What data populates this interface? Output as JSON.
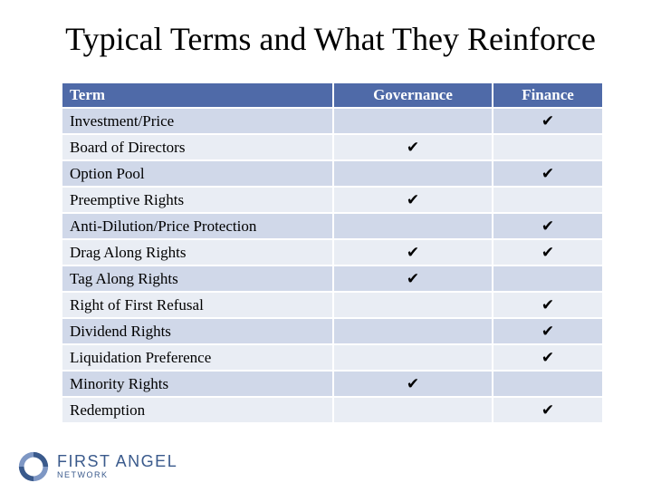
{
  "title": "Typical Terms and What They Reinforce",
  "table": {
    "headers": [
      "Term",
      "Governance",
      "Finance"
    ],
    "check_glyph": "✔",
    "rows": [
      {
        "term": "Investment/Price",
        "governance": false,
        "finance": true
      },
      {
        "term": "Board of Directors",
        "governance": true,
        "finance": false
      },
      {
        "term": "Option Pool",
        "governance": false,
        "finance": true
      },
      {
        "term": "Preemptive Rights",
        "governance": true,
        "finance": false
      },
      {
        "term": "Anti-Dilution/Price Protection",
        "governance": false,
        "finance": true
      },
      {
        "term": "Drag Along Rights",
        "governance": true,
        "finance": true
      },
      {
        "term": "Tag Along Rights",
        "governance": true,
        "finance": false
      },
      {
        "term": "Right of First Refusal",
        "governance": false,
        "finance": true
      },
      {
        "term": "Dividend Rights",
        "governance": false,
        "finance": true
      },
      {
        "term": "Liquidation Preference",
        "governance": false,
        "finance": true
      },
      {
        "term": "Minority Rights",
        "governance": true,
        "finance": false
      },
      {
        "term": "Redemption",
        "governance": false,
        "finance": true
      }
    ]
  },
  "logo": {
    "name": "FIRST ANGEL",
    "sub": "NETWORK",
    "icon": "circular-swirl-logo-icon"
  },
  "colors": {
    "header_bg": "#4f6aa8",
    "row_odd": "#d0d8e9",
    "row_even": "#e9edf4",
    "brand": "#3a5a8c"
  }
}
